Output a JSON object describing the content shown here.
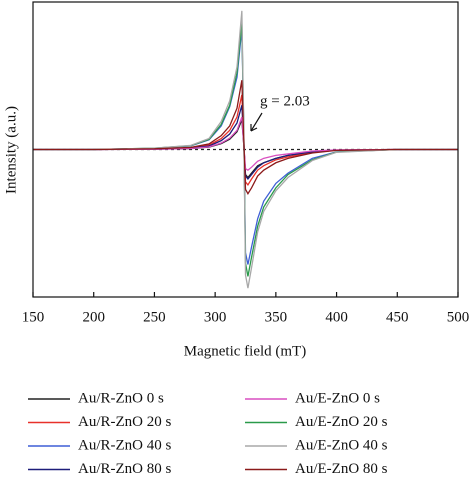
{
  "chart_data": {
    "type": "line",
    "x_label": "Magnetic field (mT)",
    "y_label": "Intensity (a.u.)",
    "annotation": "g = 2.03",
    "xlim": [
      150,
      500
    ],
    "xticks": [
      150,
      200,
      250,
      300,
      350,
      400,
      450,
      500
    ],
    "ylim": [
      -1,
      1
    ],
    "x": [
      150,
      200,
      250,
      280,
      295,
      305,
      312,
      318,
      322,
      323.5,
      325,
      327,
      330,
      335,
      340,
      350,
      360,
      380,
      400,
      450,
      500
    ],
    "series": [
      {
        "name": "Au/R-ZnO 0 s",
        "color": "#222222",
        "values": [
          0,
          0,
          0.002,
          0.006,
          0.016,
          0.04,
          0.07,
          0.12,
          0.2,
          0.04,
          -0.17,
          -0.19,
          -0.16,
          -0.11,
          -0.09,
          -0.06,
          -0.04,
          -0.015,
          -0.004,
          0,
          0
        ]
      },
      {
        "name": "Au/R-ZnO 20 s",
        "color": "#e8312a",
        "values": [
          0,
          0,
          0.004,
          0.011,
          0.03,
          0.074,
          0.13,
          0.22,
          0.37,
          0.07,
          -0.22,
          -0.24,
          -0.2,
          -0.14,
          -0.11,
          -0.07,
          -0.05,
          -0.02,
          -0.005,
          0,
          0
        ]
      },
      {
        "name": "Au/R-ZnO 40 s",
        "color": "#3f5fd6",
        "values": [
          0,
          0,
          0.008,
          0.025,
          0.066,
          0.16,
          0.29,
          0.49,
          0.82,
          0.16,
          -0.7,
          -0.78,
          -0.66,
          -0.47,
          -0.35,
          -0.23,
          -0.16,
          -0.06,
          -0.016,
          0,
          0
        ]
      },
      {
        "name": "Au/R-ZnO 80 s",
        "color": "#1d1d7a",
        "values": [
          0,
          0,
          0.003,
          0.009,
          0.024,
          0.06,
          0.105,
          0.18,
          0.3,
          0.06,
          -0.18,
          -0.2,
          -0.17,
          -0.12,
          -0.09,
          -0.06,
          -0.04,
          -0.016,
          -0.004,
          0,
          0
        ]
      },
      {
        "name": "Au/E-ZnO 0 s",
        "color": "#d94fc0",
        "values": [
          0,
          0,
          0.002,
          0.007,
          0.018,
          0.044,
          0.077,
          0.13,
          0.22,
          0.04,
          -0.13,
          -0.14,
          -0.12,
          -0.08,
          -0.06,
          -0.04,
          -0.03,
          -0.01,
          -0.003,
          0,
          0
        ]
      },
      {
        "name": "Au/E-ZnO 20 s",
        "color": "#2a9a4a",
        "values": [
          0,
          0,
          0.009,
          0.026,
          0.069,
          0.17,
          0.3,
          0.52,
          0.86,
          0.17,
          -0.77,
          -0.86,
          -0.73,
          -0.52,
          -0.39,
          -0.26,
          -0.17,
          -0.07,
          -0.017,
          0,
          0
        ]
      },
      {
        "name": "Au/E-ZnO 40 s",
        "color": "#a8a8a8",
        "values": [
          0,
          0,
          0.009,
          0.028,
          0.075,
          0.19,
          0.33,
          0.56,
          0.94,
          0.19,
          -0.85,
          -0.94,
          -0.8,
          -0.56,
          -0.42,
          -0.28,
          -0.19,
          -0.075,
          -0.019,
          0,
          0
        ]
      },
      {
        "name": "Au/E-ZnO 80 s",
        "color": "#8b1a1a",
        "values": [
          0,
          0,
          0.005,
          0.014,
          0.038,
          0.094,
          0.16,
          0.28,
          0.47,
          0.09,
          -0.27,
          -0.3,
          -0.26,
          -0.18,
          -0.14,
          -0.09,
          -0.06,
          -0.024,
          -0.006,
          0,
          0
        ]
      }
    ]
  }
}
